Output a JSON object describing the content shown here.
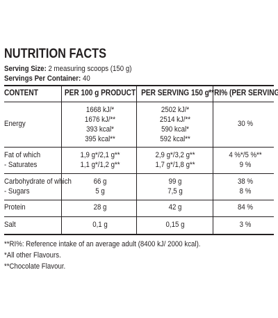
{
  "title": "NUTRITION FACTS",
  "serving_size": {
    "label": "Serving Size:",
    "value": "2 measuring scoops (150 g)"
  },
  "servings_per_container": {
    "label": "Servings Per Container:",
    "value": "40"
  },
  "columns": [
    "CONTENT",
    "PER 100 g PRODUCT",
    "PER SERVING 150 g",
    "**RI% (PER SERVING)"
  ],
  "energy": {
    "label": "Energy",
    "per100": [
      "1668 kJ/*",
      "1676 kJ/**",
      "393 kcal*",
      "395 kcal**"
    ],
    "serving": [
      "2502 kJ/*",
      "2514 kJ/**",
      "590 kcal*",
      "592 kcal**"
    ],
    "ri": "30 %"
  },
  "fat": {
    "labels": [
      "Fat of which",
      "- Saturates"
    ],
    "per100": [
      "1,9 g*/2,1 g**",
      "1,1 g*/1,2 g**"
    ],
    "serving": [
      "2,9 g*/3,2 g**",
      "1,7 g*/1,8 g**"
    ],
    "ri": [
      "4 %*/5 %**",
      "9 %"
    ]
  },
  "carb": {
    "labels": [
      "Carbohydrate of which",
      "- Sugars"
    ],
    "per100": [
      "66 g",
      "5 g"
    ],
    "serving": [
      "99 g",
      "7,5 g"
    ],
    "ri": [
      "38 %",
      "8 %"
    ]
  },
  "protein": {
    "label": "Protein",
    "per100": "28 g",
    "serving": "42 g",
    "ri": "84 %"
  },
  "salt": {
    "label": "Salt",
    "per100": "0,1 g",
    "serving": "0,15 g",
    "ri": "3 %"
  },
  "notes": [
    "**RI%: Reference intake of an average adult (8400 kJ/ 2000 kcal).",
    "*All other Flavours.",
    "**Chocolate Flavour."
  ]
}
